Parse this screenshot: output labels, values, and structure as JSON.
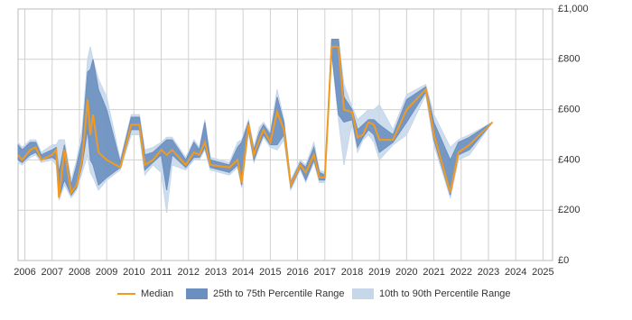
{
  "chart_data": {
    "type": "percentile-band",
    "x": [
      2005.75,
      2005.9,
      2006.2,
      2006.4,
      2006.6,
      2007.0,
      2007.15,
      2007.25,
      2007.45,
      2007.7,
      2007.9,
      2008.1,
      2008.3,
      2008.4,
      2008.5,
      2008.7,
      2009.0,
      2009.5,
      2009.9,
      2010.2,
      2010.4,
      2010.7,
      2011.0,
      2011.2,
      2011.4,
      2011.9,
      2012.2,
      2012.4,
      2012.6,
      2012.8,
      2013.5,
      2013.8,
      2013.95,
      2014.2,
      2014.4,
      2014.6,
      2014.75,
      2015.0,
      2015.25,
      2015.5,
      2015.75,
      2016.1,
      2016.3,
      2016.6,
      2016.8,
      2017.0,
      2017.25,
      2017.5,
      2017.7,
      2018.0,
      2018.2,
      2018.4,
      2018.6,
      2018.8,
      2019.0,
      2019.5,
      2020.0,
      2020.7,
      2021.0,
      2021.6,
      2021.9,
      2022.3,
      2023.15
    ],
    "series": [
      {
        "name": "Median",
        "color": "#f29a1f",
        "values": [
          420,
          400,
          440,
          450,
          400,
          420,
          440,
          250,
          440,
          270,
          300,
          400,
          640,
          500,
          580,
          430,
          400,
          370,
          540,
          540,
          380,
          400,
          440,
          420,
          440,
          380,
          430,
          420,
          470,
          380,
          370,
          400,
          310,
          540,
          420,
          480,
          520,
          470,
          590,
          520,
          300,
          380,
          350,
          420,
          330,
          330,
          850,
          850,
          600,
          590,
          490,
          500,
          550,
          540,
          480,
          480,
          600,
          680,
          500,
          270,
          430,
          460,
          550
        ]
      },
      {
        "name": "25th to 75th Percentile Range",
        "color": "#6b8fbf",
        "low": [
          400,
          390,
          420,
          430,
          400,
          410,
          400,
          250,
          320,
          260,
          290,
          380,
          520,
          400,
          380,
          300,
          330,
          370,
          520,
          520,
          360,
          390,
          420,
          280,
          420,
          370,
          410,
          410,
          450,
          370,
          350,
          380,
          300,
          520,
          400,
          460,
          500,
          460,
          460,
          500,
          290,
          370,
          320,
          400,
          320,
          320,
          830,
          580,
          550,
          560,
          450,
          490,
          520,
          500,
          430,
          470,
          550,
          670,
          480,
          260,
          420,
          440,
          550
        ],
        "high": [
          460,
          440,
          470,
          470,
          420,
          440,
          450,
          350,
          460,
          300,
          380,
          480,
          750,
          760,
          800,
          680,
          600,
          390,
          570,
          570,
          420,
          430,
          460,
          480,
          480,
          400,
          470,
          440,
          550,
          400,
          380,
          450,
          470,
          550,
          440,
          510,
          540,
          500,
          650,
          550,
          310,
          390,
          370,
          450,
          350,
          340,
          880,
          880,
          650,
          600,
          520,
          540,
          560,
          560,
          540,
          500,
          640,
          690,
          550,
          400,
          470,
          490,
          550
        ]
      },
      {
        "name": "10th to 90th Percentile Range",
        "color": "#c6d7ea",
        "low": [
          390,
          380,
          410,
          420,
          390,
          400,
          380,
          240,
          300,
          250,
          280,
          350,
          420,
          350,
          330,
          280,
          320,
          360,
          500,
          500,
          340,
          380,
          350,
          190,
          380,
          360,
          400,
          400,
          440,
          360,
          340,
          370,
          290,
          510,
          390,
          450,
          490,
          450,
          440,
          480,
          280,
          360,
          310,
          390,
          310,
          310,
          820,
          560,
          380,
          550,
          430,
          480,
          500,
          470,
          400,
          460,
          500,
          660,
          460,
          250,
          400,
          420,
          550
        ],
        "high": [
          470,
          450,
          480,
          480,
          430,
          460,
          460,
          480,
          480,
          320,
          400,
          520,
          800,
          850,
          800,
          720,
          650,
          400,
          580,
          580,
          440,
          450,
          470,
          490,
          490,
          410,
          480,
          450,
          560,
          410,
          390,
          470,
          480,
          560,
          450,
          530,
          550,
          510,
          680,
          560,
          320,
          400,
          380,
          470,
          360,
          350,
          880,
          880,
          700,
          610,
          560,
          580,
          600,
          600,
          620,
          520,
          660,
          700,
          580,
          450,
          480,
          500,
          550
        ]
      }
    ],
    "xlim": [
      2005.75,
      2025.35
    ],
    "xticks": [
      2006,
      2007,
      2008,
      2009,
      2010,
      2011,
      2012,
      2013,
      2014,
      2015,
      2016,
      2017,
      2018,
      2019,
      2020,
      2021,
      2022,
      2023,
      2024,
      2025
    ],
    "ylim": [
      0,
      1000
    ],
    "yticks": [
      {
        "value": 0,
        "label": "£0"
      },
      {
        "value": 200,
        "label": "£200"
      },
      {
        "value": 400,
        "label": "£400"
      },
      {
        "value": 600,
        "label": "£600"
      },
      {
        "value": 800,
        "label": "£800"
      },
      {
        "value": 1000,
        "label": "£1,000"
      }
    ],
    "grid": true
  }
}
